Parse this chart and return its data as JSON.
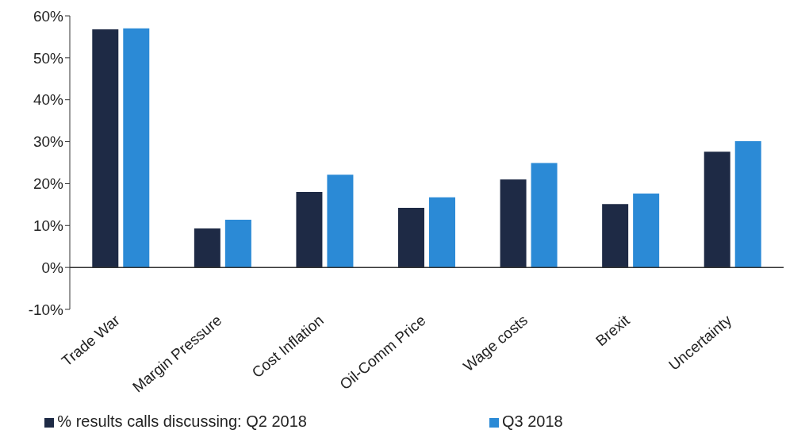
{
  "chart_data": {
    "type": "bar",
    "categories": [
      "Trade War",
      "Margin Pressure",
      "Cost Inflation",
      "Oil-Comm Price",
      "Wage costs",
      "Brexit",
      "Uncertainty"
    ],
    "series": [
      {
        "name": "% results calls discussing: Q2 2018",
        "color": "#1e2a45",
        "values": [
          56.8,
          9.3,
          18.0,
          14.2,
          21.0,
          15.1,
          27.6
        ]
      },
      {
        "name": "Q3 2018",
        "color": "#2b8ad6",
        "values": [
          57.0,
          11.4,
          22.1,
          16.7,
          24.9,
          17.6,
          30.1
        ]
      }
    ],
    "ylim": [
      -10,
      60
    ],
    "yticks": [
      {
        "value": -10,
        "label": "-10%"
      },
      {
        "value": 0,
        "label": "0%"
      },
      {
        "value": 10,
        "label": "10%"
      },
      {
        "value": 20,
        "label": "20%"
      },
      {
        "value": 30,
        "label": "30%"
      },
      {
        "value": 40,
        "label": "40%"
      },
      {
        "value": 50,
        "label": "50%"
      },
      {
        "value": 60,
        "label": "60%"
      }
    ],
    "legend": "bottom"
  }
}
